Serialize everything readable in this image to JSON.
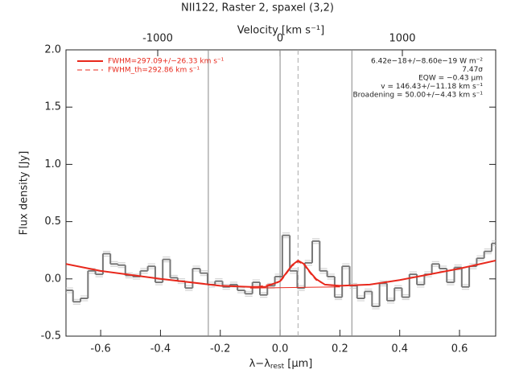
{
  "chart_data": {
    "type": "step",
    "title": "NII122, Raster 2, spaxel (3,2)",
    "x2label": "Velocity [km s⁻¹]",
    "xlabel": {
      "main": "λ−λ",
      "sub": "rest",
      "unit": " [μm]"
    },
    "ylabel": "Flux density [Jy]",
    "xlim": [
      -0.716,
      0.721
    ],
    "ylim": [
      -0.5,
      2.0
    ],
    "x2lim": [
      -1750,
      1763
    ],
    "xticks": [
      -0.6,
      -0.4,
      -0.2,
      {
        "value": 0.0,
        "label": "0.0"
      },
      0.2,
      0.4,
      0.6
    ],
    "yticks": [
      -0.5,
      {
        "value": 0.0,
        "label": "0.0"
      },
      0.5,
      {
        "value": 1.0,
        "label": "1.0"
      },
      1.5,
      {
        "value": 2.0,
        "label": "2.0"
      }
    ],
    "x2ticks": [
      -1000,
      0,
      1000
    ],
    "x": [
      -0.705,
      -0.68,
      -0.655,
      -0.63,
      -0.605,
      -0.58,
      -0.555,
      -0.53,
      -0.505,
      -0.48,
      -0.455,
      -0.43,
      -0.405,
      -0.38,
      -0.355,
      -0.33,
      -0.305,
      -0.28,
      -0.255,
      -0.23,
      -0.205,
      -0.18,
      -0.155,
      -0.13,
      -0.105,
      -0.08,
      -0.055,
      -0.03,
      -0.005,
      0.02,
      0.045,
      0.07,
      0.095,
      0.12,
      0.145,
      0.17,
      0.195,
      0.22,
      0.245,
      0.27,
      0.295,
      0.32,
      0.345,
      0.37,
      0.395,
      0.42,
      0.445,
      0.47,
      0.495,
      0.52,
      0.545,
      0.57,
      0.595,
      0.62,
      0.645,
      0.67,
      0.695,
      0.72
    ],
    "values": [
      -0.1,
      -0.2,
      -0.17,
      0.07,
      0.04,
      0.22,
      0.13,
      0.12,
      0.03,
      0.02,
      0.07,
      0.11,
      -0.03,
      0.17,
      0.01,
      -0.02,
      -0.08,
      0.09,
      0.05,
      -0.05,
      -0.02,
      -0.07,
      -0.05,
      -0.1,
      -0.13,
      -0.03,
      -0.14,
      -0.06,
      0.02,
      0.38,
      0.07,
      -0.08,
      0.14,
      0.33,
      0.07,
      0.02,
      -0.16,
      0.11,
      -0.06,
      -0.17,
      -0.11,
      -0.24,
      -0.04,
      -0.19,
      -0.08,
      -0.16,
      0.04,
      -0.05,
      0.04,
      0.13,
      0.09,
      -0.03,
      0.1,
      -0.07,
      0.11,
      0.18,
      0.24,
      0.31
    ],
    "color": "#777777",
    "fits": [
      {
        "name": "FWHM=297.09+/−26.33 km s⁻¹",
        "color": "#e8281c",
        "dash": false,
        "x": [
          -0.716,
          -0.6,
          -0.4,
          -0.2,
          -0.1,
          -0.05,
          0.0,
          0.02,
          0.04,
          0.06,
          0.08,
          0.1,
          0.12,
          0.15,
          0.2,
          0.3,
          0.4,
          0.5,
          0.6,
          0.721
        ],
        "values": [
          0.13,
          0.07,
          0.0,
          -0.06,
          -0.07,
          -0.07,
          -0.02,
          0.05,
          0.12,
          0.16,
          0.13,
          0.06,
          0.0,
          -0.05,
          -0.06,
          -0.05,
          -0.01,
          0.04,
          0.09,
          0.16
        ]
      },
      {
        "name": "FWHM_th=292.86 km s⁻¹",
        "color": "#e8281c",
        "dash": true,
        "x": [
          -0.1,
          0.0,
          0.02,
          0.04,
          0.06,
          0.08,
          0.1,
          0.12,
          0.15,
          0.2
        ],
        "values": [
          -0.08,
          -0.03,
          0.04,
          0.11,
          0.15,
          0.12,
          0.05,
          -0.01,
          -0.05,
          -0.07
        ]
      }
    ],
    "continuum": {
      "color": "#e8281c",
      "x": [
        -0.1,
        0.2
      ],
      "values": [
        -0.08,
        -0.07
      ]
    },
    "vlines": [
      {
        "x": -0.24,
        "dash": false
      },
      {
        "x": 0.0,
        "dash": false
      },
      {
        "x": 0.24,
        "dash": false
      },
      {
        "x": 0.06,
        "dash": true
      }
    ],
    "annotations": [
      "6.42e−18+/−8.60e−19 W m⁻²",
      "7.47σ",
      "EQW = −0.43 μm",
      "v = 146.43+/−11.18 km s⁻¹",
      "Broadening = 50.00+/−4.43 km s⁻¹"
    ]
  }
}
